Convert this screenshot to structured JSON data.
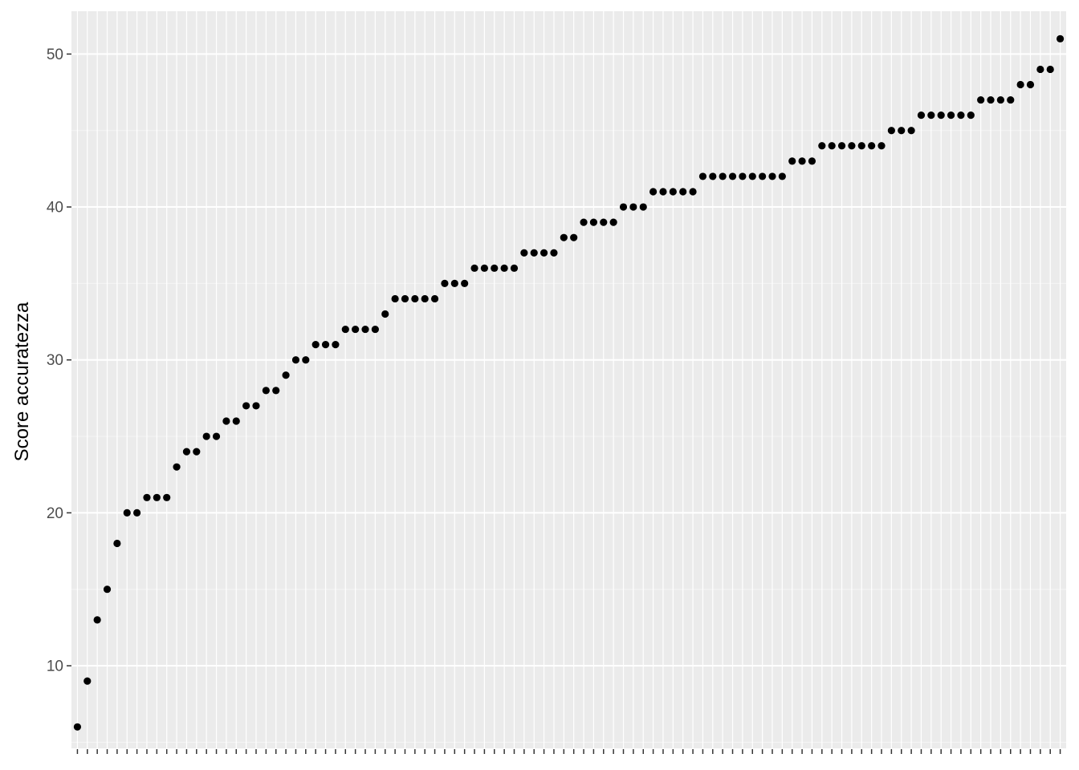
{
  "chart_data": {
    "type": "scatter",
    "title": "",
    "xlabel": "",
    "ylabel": "Score accuratezza",
    "ylim": [
      4.6,
      52.8
    ],
    "y_ticks": [
      10,
      20,
      30,
      40,
      50
    ],
    "y_tick_labels": [
      "10",
      "20",
      "30",
      "40",
      "50"
    ],
    "x_tick_labels_visible": false,
    "grid": true,
    "legend": "none",
    "colors": {
      "panel_background": "#ebebeb",
      "grid_major": "#ffffff",
      "grid_minor": "#f5f5f5",
      "point": "#000000",
      "tick_label": "#4d4d4d",
      "tick_mark": "#333333"
    },
    "values": [
      6,
      9,
      13,
      15,
      18,
      20,
      20,
      21,
      21,
      21,
      23,
      24,
      24,
      25,
      25,
      26,
      26,
      27,
      27,
      28,
      28,
      29,
      30,
      30,
      31,
      31,
      31,
      32,
      32,
      32,
      32,
      33,
      34,
      34,
      34,
      34,
      34,
      35,
      35,
      35,
      36,
      36,
      36,
      36,
      36,
      37,
      37,
      37,
      37,
      38,
      38,
      39,
      39,
      39,
      39,
      40,
      40,
      40,
      41,
      41,
      41,
      41,
      41,
      42,
      42,
      42,
      42,
      42,
      42,
      42,
      42,
      42,
      43,
      43,
      43,
      44,
      44,
      44,
      44,
      44,
      44,
      44,
      45,
      45,
      45,
      46,
      46,
      46,
      46,
      46,
      46,
      47,
      47,
      47,
      47,
      48,
      48,
      49,
      49,
      51
    ]
  }
}
